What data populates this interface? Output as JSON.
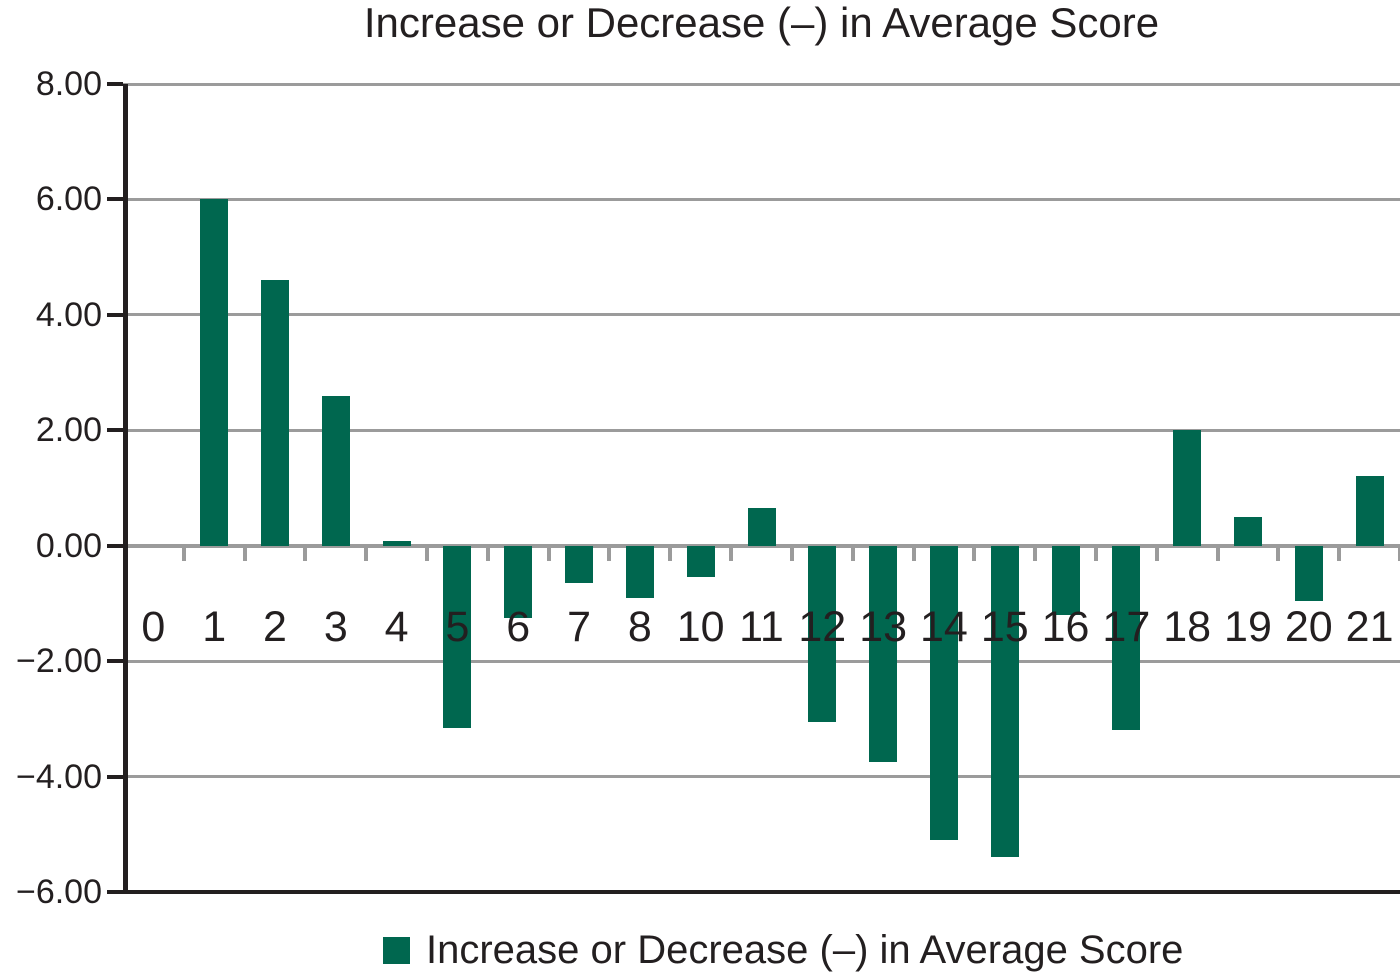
{
  "figure": {
    "title": "Increase or Decrease (–) in Average Score"
  },
  "chart_data": {
    "type": "bar",
    "title": "Increase or Decrease (–) in Average Score",
    "categories": [
      "0",
      "1",
      "2",
      "3",
      "4",
      "5",
      "6",
      "7",
      "8",
      "10",
      "11",
      "12",
      "13",
      "14",
      "15",
      "16",
      "17",
      "18",
      "19",
      "20",
      "21"
    ],
    "values": [
      0,
      6.0,
      4.6,
      2.6,
      0.08,
      -3.15,
      -1.25,
      -0.65,
      -0.9,
      -0.55,
      0.65,
      -3.05,
      -3.75,
      -5.1,
      -5.4,
      -1.2,
      -3.2,
      2.0,
      0.5,
      -0.95,
      1.2
    ],
    "xlabel": "",
    "ylabel": "",
    "ylim": [
      -6,
      8
    ],
    "ytick_step": 2,
    "ytick_labels": [
      "8.00",
      "6.00",
      "4.00",
      "2.00",
      "0.00",
      "−2.00",
      "−4.00",
      "−6.00"
    ],
    "grid": true,
    "legend": {
      "label": "Increase or Decrease (–) in Average Score",
      "position": "bottom"
    },
    "colors": {
      "bar": "#00674F",
      "gridline": "#9b9b9b",
      "axis": "#231f20",
      "text": "#231f20"
    }
  }
}
